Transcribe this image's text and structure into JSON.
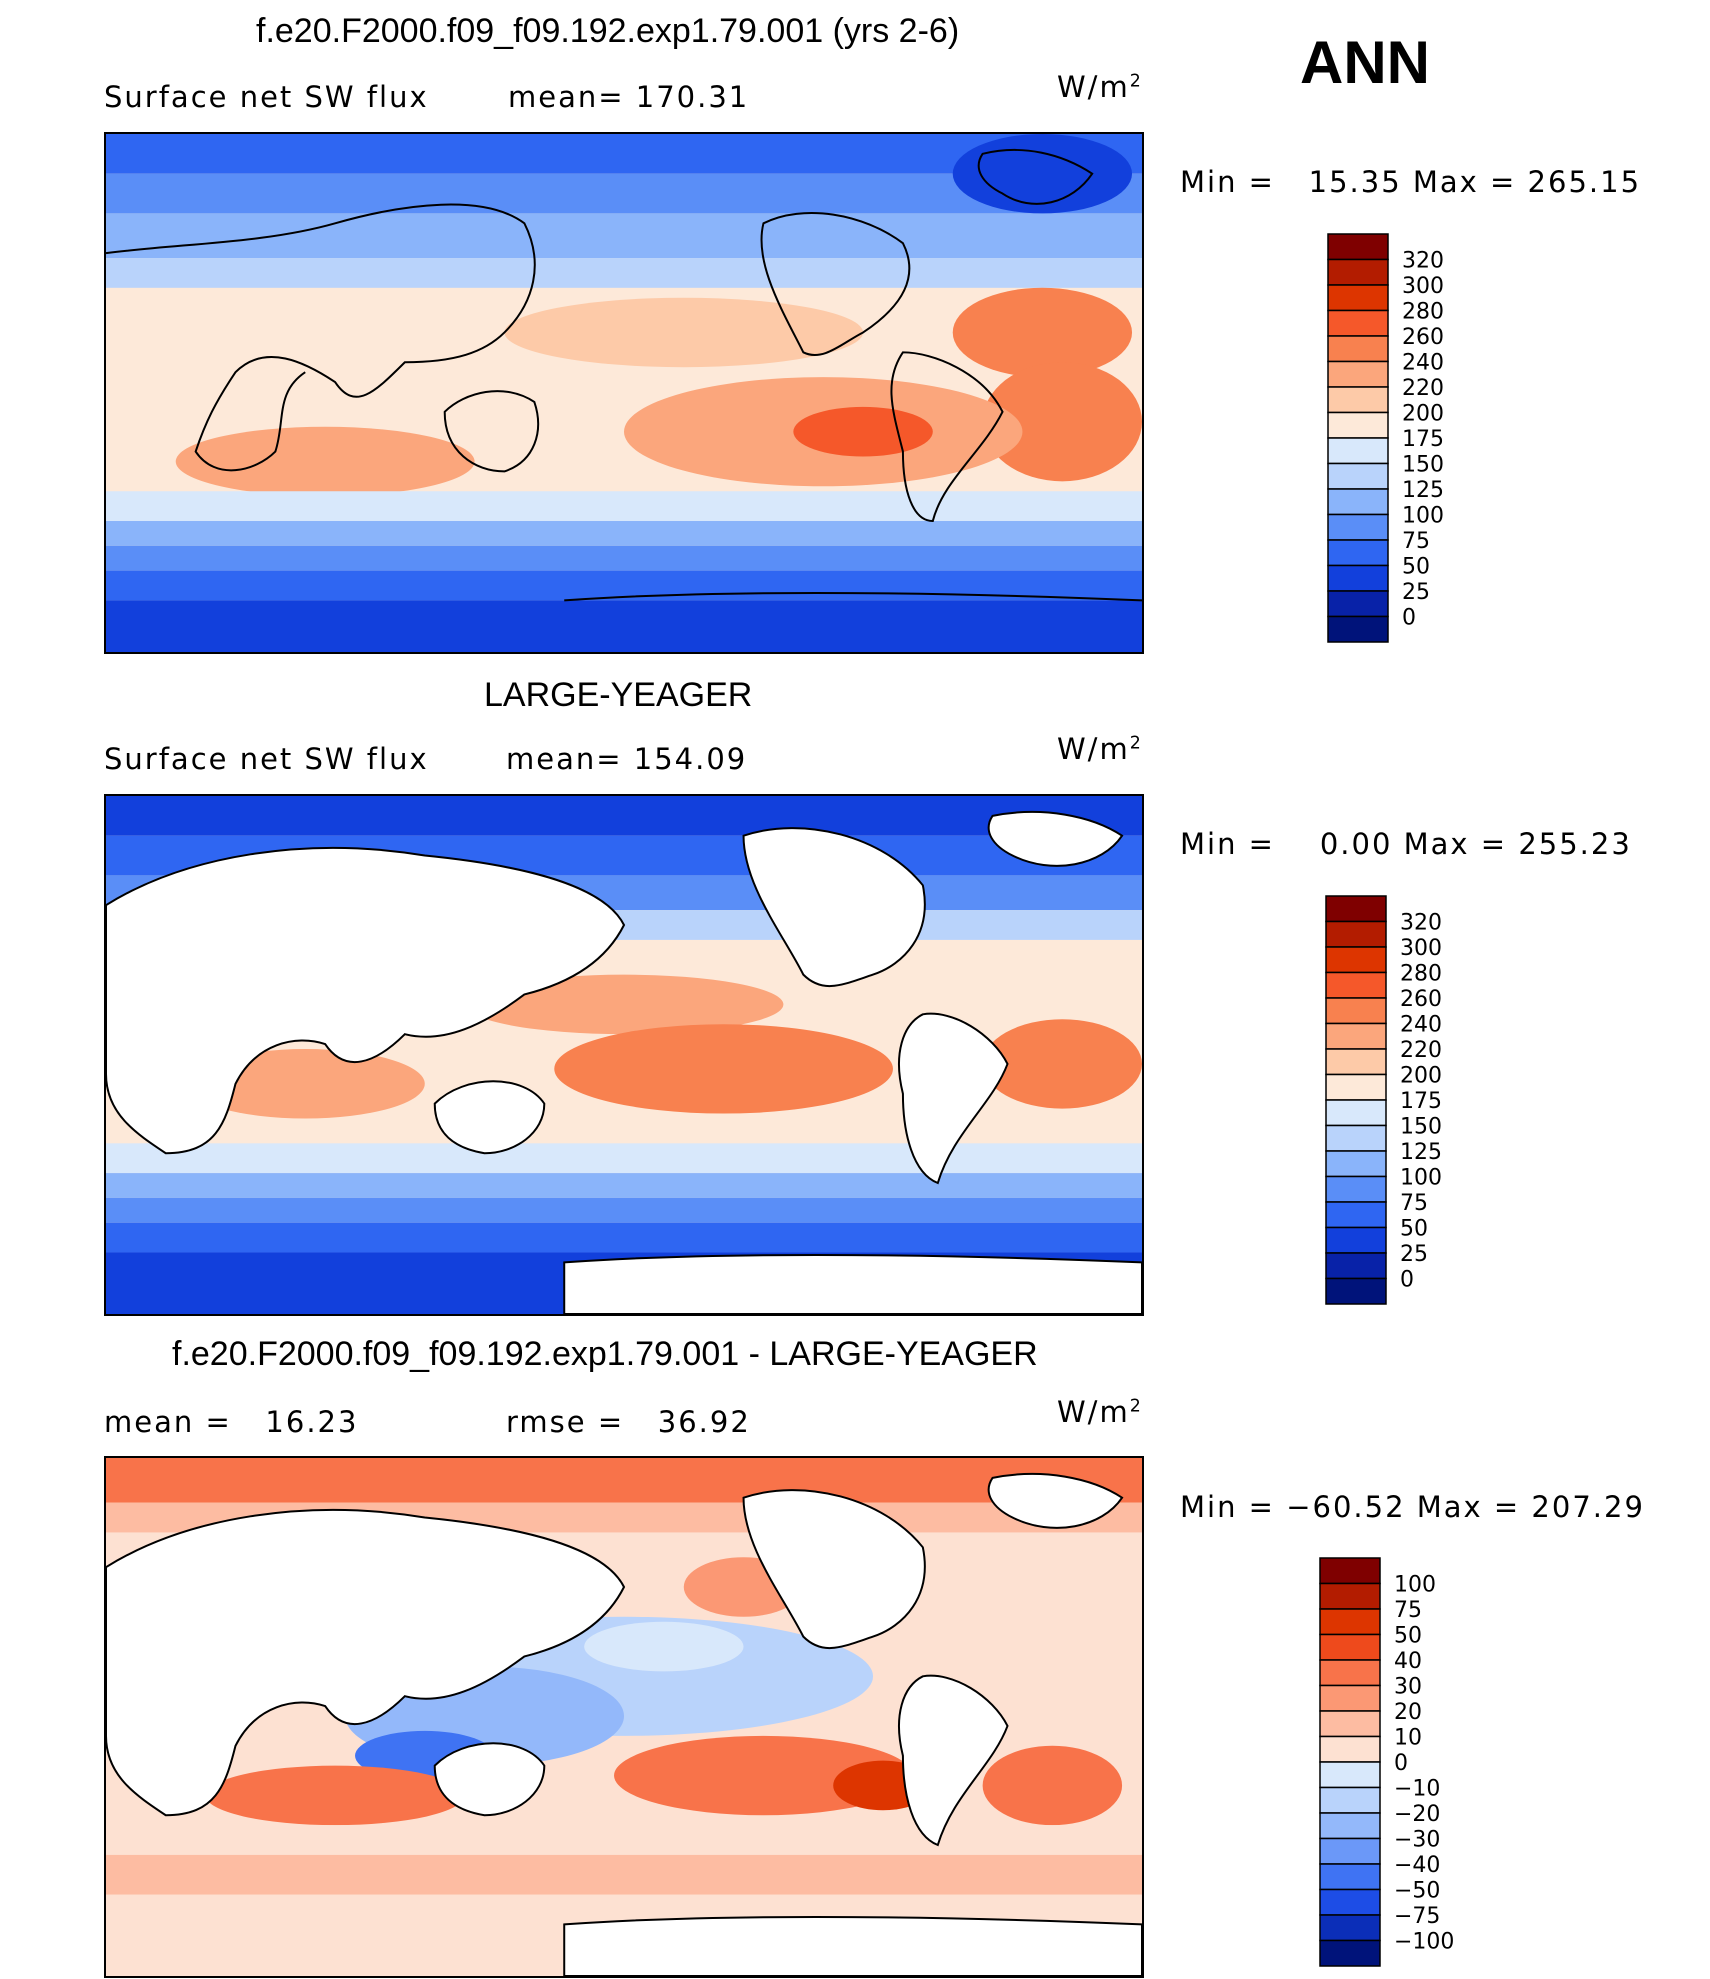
{
  "season": "ANN",
  "units_base": "W/m",
  "units_exp": "2",
  "panels": [
    {
      "title": "f.e20.F2000.f09_f09.192.exp1.79.001 (yrs 2-6)",
      "left_text": "Surface net SW flux",
      "right_text": "mean= 170.31",
      "minmax": "Min =   15.35 Max = 265.15",
      "colorbar_levels": [
        "320",
        "300",
        "280",
        "260",
        "240",
        "220",
        "200",
        "175",
        "150",
        "125",
        "100",
        "75",
        "50",
        "25",
        "0"
      ]
    },
    {
      "title": "LARGE-YEAGER",
      "left_text": "Surface net SW flux",
      "right_text": "mean= 154.09",
      "minmax": "Min =    0.00 Max = 255.23",
      "colorbar_levels": [
        "320",
        "300",
        "280",
        "260",
        "240",
        "220",
        "200",
        "175",
        "150",
        "125",
        "100",
        "75",
        "50",
        "25",
        "0"
      ]
    },
    {
      "title": "f.e20.F2000.f09_f09.192.exp1.79.001 - LARGE-YEAGER",
      "left_text": "mean =   16.23",
      "right_text": "rmse =   36.92",
      "minmax": "Min = −60.52 Max = 207.29",
      "colorbar_levels": [
        "100",
        "75",
        "50",
        "40",
        "30",
        "20",
        "10",
        "0",
        "−10",
        "−20",
        "−30",
        "−40",
        "−50",
        "−75",
        "−100"
      ]
    }
  ],
  "colors": {
    "abs_scale": [
      "#7f0000",
      "#b31c00",
      "#dd3500",
      "#f5582a",
      "#f8814f",
      "#fba67c",
      "#fdcaa8",
      "#fde9d9",
      "#d8e8fb",
      "#b9d3fb",
      "#8ab4fa",
      "#5a8ef7",
      "#2f66f2",
      "#1240dc",
      "#0822a8",
      "#00137a"
    ],
    "diff_scale": [
      "#7f0000",
      "#b31c00",
      "#dd3500",
      "#ee4a1c",
      "#f8734a",
      "#fb9874",
      "#fdbca2",
      "#fde1d2",
      "#d8e8fb",
      "#b9d3fb",
      "#93b8fa",
      "#6b98f8",
      "#3f73f3",
      "#1d4de6",
      "#0b2eb8",
      "#00137a"
    ]
  }
}
